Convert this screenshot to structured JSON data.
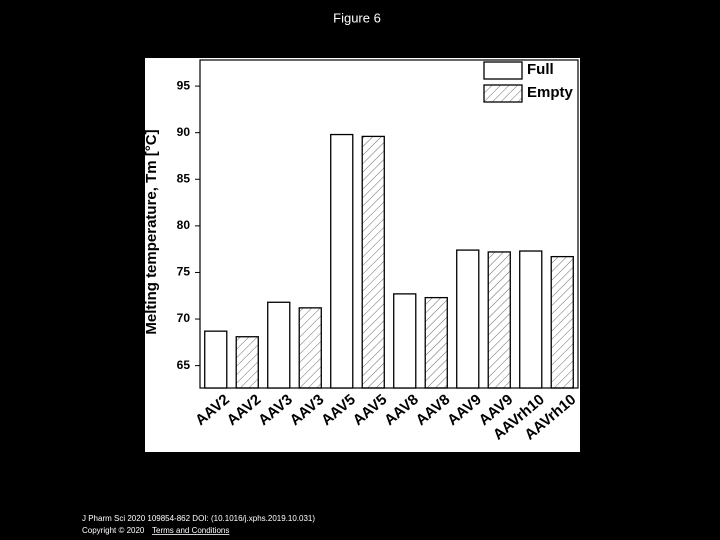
{
  "page_title": "Figure 6",
  "chart_data": {
    "type": "bar",
    "y_label": "Melting temperature, Tm [°C]",
    "categories": [
      "AAV2",
      "AAV3",
      "AAV5",
      "AAV8",
      "AAV9",
      "AAVrh10"
    ],
    "series": [
      {
        "name": "Full",
        "color": "#ffffff",
        "values": [
          68.7,
          71.8,
          89.8,
          72.7,
          77.4,
          77.3
        ]
      },
      {
        "name": "Empty",
        "color": "#ffffff",
        "pattern": "hatch",
        "values": [
          68.1,
          71.2,
          89.6,
          72.3,
          77.2,
          76.7
        ]
      }
    ],
    "ylim": [
      62.6,
      97.8
    ],
    "yticks": [
      65,
      70,
      75,
      80,
      85,
      90,
      95
    ],
    "legend": "upper right"
  },
  "footer": {
    "citation": "J Pharm Sci 2020 109854-862 DOI: (10.1016/j.xphs.2019.10.031)",
    "copyright": "Copyright © 2020",
    "link": "Terms and Conditions"
  }
}
